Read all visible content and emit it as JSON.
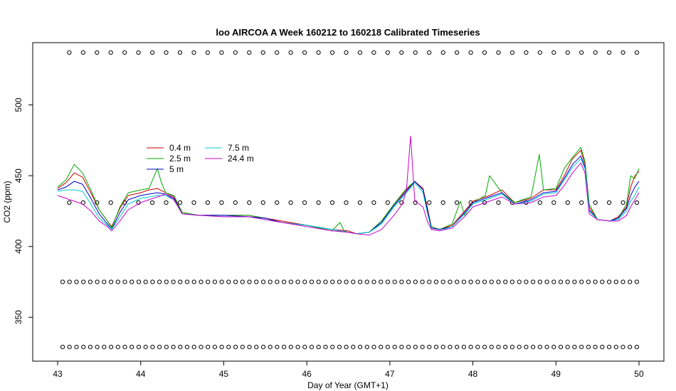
{
  "chart_data": {
    "type": "line",
    "title": "loo AIRCOA A  Week 160212 to 160218  Calibrated Timeseries",
    "xlabel": "Day of Year (GMT+1)",
    "ylabel": "CO2 (ppm)",
    "xlim": [
      42.7,
      50.3
    ],
    "ylim": [
      319,
      544
    ],
    "x_ticks": [
      43,
      44,
      45,
      46,
      47,
      48,
      49,
      50
    ],
    "y_ticks": [
      350,
      400,
      450,
      500
    ],
    "grid": false,
    "legend": {
      "placement": "upper-left",
      "columns": [
        [
          "0.4 m",
          "2.5 m",
          "5 m"
        ],
        [
          "7.5 m",
          "24.4 m"
        ]
      ]
    },
    "series": [
      {
        "name": "0.4 m",
        "color": "#cc0000",
        "x": [
          43.0,
          43.1,
          43.2,
          43.3,
          43.4,
          43.5,
          43.6,
          43.65,
          43.75,
          43.85,
          44.0,
          44.1,
          44.2,
          44.3,
          44.4,
          44.5,
          44.7,
          45.0,
          45.3,
          45.5,
          45.7,
          46.0,
          46.3,
          46.5,
          46.6,
          46.75,
          46.9,
          47.05,
          47.2,
          47.3,
          47.4,
          47.45,
          47.5,
          47.6,
          47.75,
          47.9,
          48.0,
          48.2,
          48.35,
          48.5,
          48.7,
          48.85,
          49.0,
          49.1,
          49.2,
          49.3,
          49.35,
          49.4,
          49.5,
          49.65,
          49.75,
          49.85,
          49.9,
          49.95,
          50.0
        ],
        "y": [
          441,
          445,
          452,
          449,
          438,
          426,
          418,
          414,
          427,
          436,
          438,
          440,
          441,
          438,
          435,
          424,
          422,
          422,
          422,
          420,
          418,
          415,
          412,
          411,
          409,
          410,
          418,
          430,
          440,
          446,
          441,
          428,
          414,
          412,
          415,
          425,
          432,
          436,
          440,
          431,
          434,
          440,
          440,
          450,
          462,
          468,
          458,
          428,
          419,
          418,
          421,
          428,
          442,
          450,
          453
        ]
      },
      {
        "name": "2.5 m",
        "color": "#00aa00",
        "x": [
          43.0,
          43.1,
          43.2,
          43.3,
          43.4,
          43.5,
          43.6,
          43.65,
          43.75,
          43.85,
          44.0,
          44.1,
          44.2,
          44.25,
          44.3,
          44.4,
          44.5,
          44.7,
          45.0,
          45.3,
          45.5,
          45.7,
          46.0,
          46.3,
          46.4,
          46.45,
          46.5,
          46.6,
          46.75,
          46.9,
          47.05,
          47.2,
          47.3,
          47.4,
          47.45,
          47.5,
          47.6,
          47.75,
          47.85,
          47.9,
          48.0,
          48.15,
          48.2,
          48.35,
          48.5,
          48.7,
          48.8,
          48.85,
          49.0,
          49.1,
          49.2,
          49.3,
          49.35,
          49.4,
          49.5,
          49.65,
          49.75,
          49.85,
          49.9,
          49.95,
          50.0
        ],
        "y": [
          442,
          447,
          458,
          452,
          440,
          426,
          418,
          413,
          428,
          438,
          440,
          441,
          455,
          445,
          438,
          436,
          424,
          422,
          422,
          422,
          420,
          417,
          415,
          411,
          417,
          411,
          410,
          409,
          410,
          418,
          430,
          441,
          446,
          440,
          426,
          414,
          412,
          416,
          432,
          422,
          431,
          436,
          450,
          438,
          431,
          435,
          465,
          440,
          441,
          455,
          463,
          470,
          460,
          430,
          419,
          418,
          420,
          430,
          450,
          448,
          455
        ]
      },
      {
        "name": "5 m",
        "color": "#0000cc",
        "x": [
          43.0,
          43.1,
          43.2,
          43.3,
          43.4,
          43.5,
          43.6,
          43.65,
          43.75,
          43.85,
          44.0,
          44.1,
          44.2,
          44.3,
          44.4,
          44.5,
          44.7,
          45.0,
          45.3,
          45.5,
          45.7,
          46.0,
          46.3,
          46.5,
          46.6,
          46.75,
          46.9,
          47.05,
          47.2,
          47.3,
          47.4,
          47.45,
          47.5,
          47.6,
          47.75,
          47.9,
          48.0,
          48.2,
          48.35,
          48.5,
          48.7,
          48.85,
          49.0,
          49.1,
          49.2,
          49.3,
          49.35,
          49.4,
          49.5,
          49.65,
          49.75,
          49.85,
          49.9,
          49.95,
          50.0
        ],
        "y": [
          440,
          442,
          446,
          444,
          434,
          423,
          416,
          412,
          424,
          433,
          436,
          437,
          438,
          437,
          434,
          423,
          422,
          422,
          421,
          420,
          417,
          415,
          412,
          410,
          409,
          410,
          417,
          429,
          439,
          446,
          440,
          426,
          413,
          412,
          414,
          424,
          431,
          435,
          438,
          430,
          433,
          438,
          439,
          448,
          458,
          464,
          456,
          426,
          419,
          418,
          420,
          427,
          436,
          442,
          446
        ]
      },
      {
        "name": "7.5 m",
        "color": "#00cccc",
        "x": [
          43.0,
          43.1,
          43.2,
          43.3,
          43.4,
          43.5,
          43.6,
          43.65,
          43.75,
          43.85,
          44.0,
          44.1,
          44.2,
          44.3,
          44.4,
          44.5,
          44.7,
          45.0,
          45.3,
          45.5,
          45.7,
          46.0,
          46.3,
          46.5,
          46.6,
          46.75,
          46.9,
          47.05,
          47.2,
          47.3,
          47.4,
          47.45,
          47.5,
          47.6,
          47.75,
          47.9,
          48.0,
          48.2,
          48.35,
          48.5,
          48.7,
          48.85,
          49.0,
          49.1,
          49.2,
          49.3,
          49.35,
          49.4,
          49.5,
          49.65,
          49.75,
          49.85,
          49.9,
          49.95,
          50.0
        ],
        "y": [
          439,
          440,
          440,
          439,
          430,
          420,
          415,
          412,
          421,
          430,
          434,
          435,
          436,
          436,
          433,
          423,
          422,
          421,
          421,
          419,
          417,
          415,
          412,
          410,
          409,
          410,
          416,
          428,
          438,
          445,
          438,
          424,
          412,
          411,
          414,
          423,
          430,
          434,
          437,
          430,
          432,
          437,
          438,
          447,
          456,
          462,
          455,
          425,
          419,
          418,
          419,
          425,
          432,
          436,
          442
        ]
      },
      {
        "name": "24.4 m",
        "color": "#cc00cc",
        "x": [
          43.0,
          43.1,
          43.2,
          43.3,
          43.4,
          43.5,
          43.6,
          43.65,
          43.75,
          43.85,
          44.0,
          44.1,
          44.2,
          44.3,
          44.4,
          44.5,
          44.7,
          45.0,
          45.3,
          45.5,
          45.7,
          46.0,
          46.3,
          46.5,
          46.6,
          46.75,
          46.9,
          47.05,
          47.15,
          47.2,
          47.25,
          47.3,
          47.4,
          47.45,
          47.5,
          47.6,
          47.75,
          47.9,
          48.0,
          48.2,
          48.35,
          48.5,
          48.7,
          48.85,
          49.0,
          49.1,
          49.2,
          49.3,
          49.35,
          49.4,
          49.5,
          49.65,
          49.75,
          49.85,
          49.9,
          49.95,
          50.0
        ],
        "y": [
          436,
          434,
          432,
          430,
          425,
          418,
          414,
          411,
          418,
          426,
          431,
          433,
          435,
          437,
          433,
          423,
          422,
          421,
          421,
          419,
          417,
          414,
          411,
          410,
          409,
          408,
          412,
          422,
          430,
          440,
          478,
          432,
          428,
          418,
          412,
          411,
          413,
          421,
          428,
          432,
          435,
          430,
          431,
          435,
          436,
          443,
          452,
          459,
          452,
          423,
          419,
          418,
          418,
          422,
          428,
          433,
          438
        ]
      }
    ],
    "marker_rows": [
      {
        "name": "marker-row-1",
        "y": 537,
        "x_start": 43.14,
        "x_end": 50.0,
        "step": 0.1667
      },
      {
        "name": "marker-row-2",
        "y": 431,
        "x_start": 43.14,
        "x_end": 50.0,
        "step": 0.1667
      },
      {
        "name": "marker-row-3",
        "y": 375,
        "x_start": 43.06,
        "x_end": 50.0,
        "step": 0.0833
      },
      {
        "name": "marker-row-4",
        "y": 329,
        "x_start": 43.06,
        "x_end": 50.0,
        "step": 0.0833
      }
    ]
  }
}
